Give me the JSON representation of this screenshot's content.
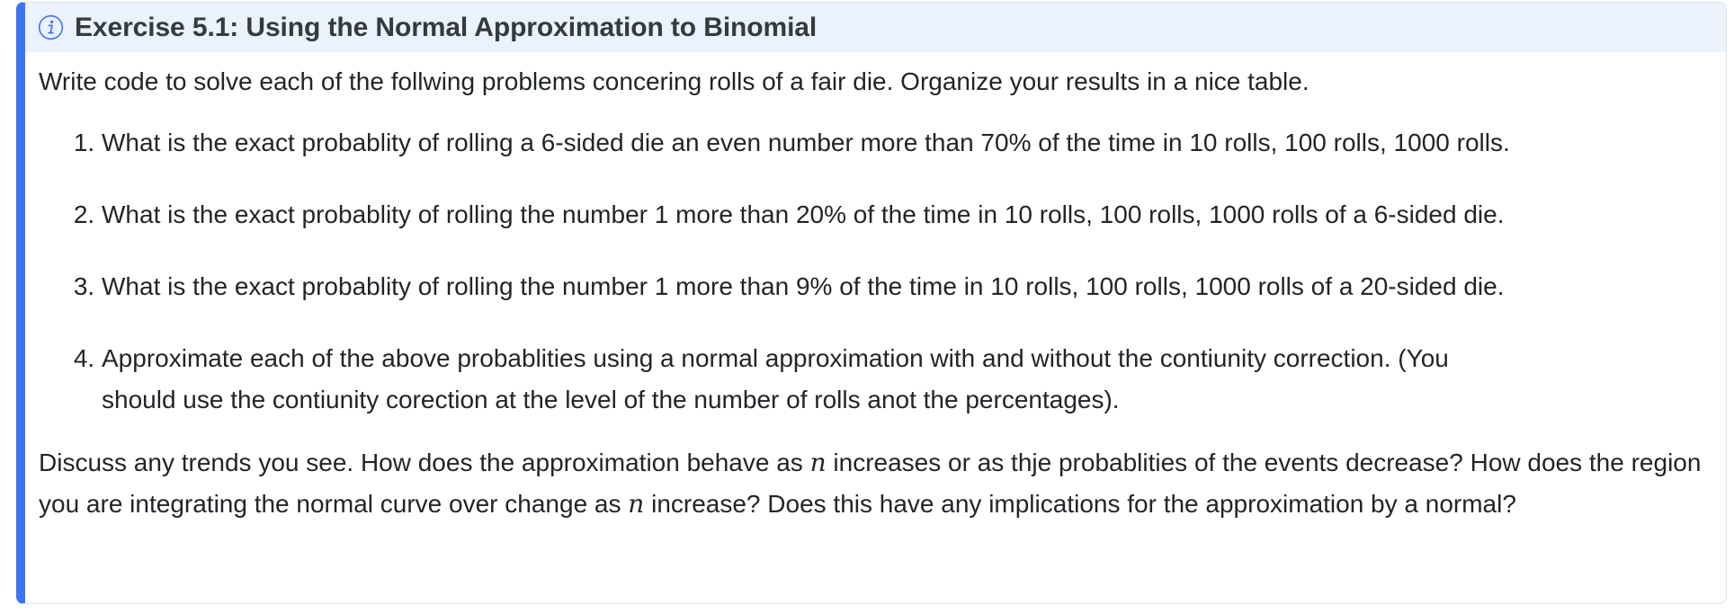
{
  "callout": {
    "title": "Exercise 5.1: Using the Normal Approximation to Binomial",
    "icon": "info-icon",
    "accent_color": "#3b76f0",
    "header_bg": "#ebf1fd"
  },
  "intro": "Write code to solve each of the follwing problems concering rolls of a fair die. Organize your results in a nice table.",
  "problems": [
    {
      "text": "What is the exact probablity of rolling a 6-sided die an even number more than 70% of the time in 10 rolls, 100 rolls, 1000 rolls."
    },
    {
      "text": "What is the exact probablity of rolling the number 1 more than 20% of the time in 10 rolls, 100 rolls, 1000 rolls of a 6-sided die."
    },
    {
      "text": "What is the exact probablity of rolling the number 1 more than 9% of the time in 10 rolls, 100 rolls, 1000 rolls of a 20-sided die."
    },
    {
      "text_line1": "Approximate each of the above probablities using a normal approximation with and without the contiunity correction. (You",
      "text_line2": "should use the contiunity corection at the level of the number of rolls anot the percentages)."
    }
  ],
  "discussion": {
    "part1": "Discuss any trends you see. How does the approximation behave as ",
    "var1": "n",
    "part2": " increases or as thje probablities of the events decrease? How does the region you are integrating the normal curve over change as ",
    "var2": "n",
    "part3": " increase? Does this have any implications for the approximation by a normal?"
  }
}
